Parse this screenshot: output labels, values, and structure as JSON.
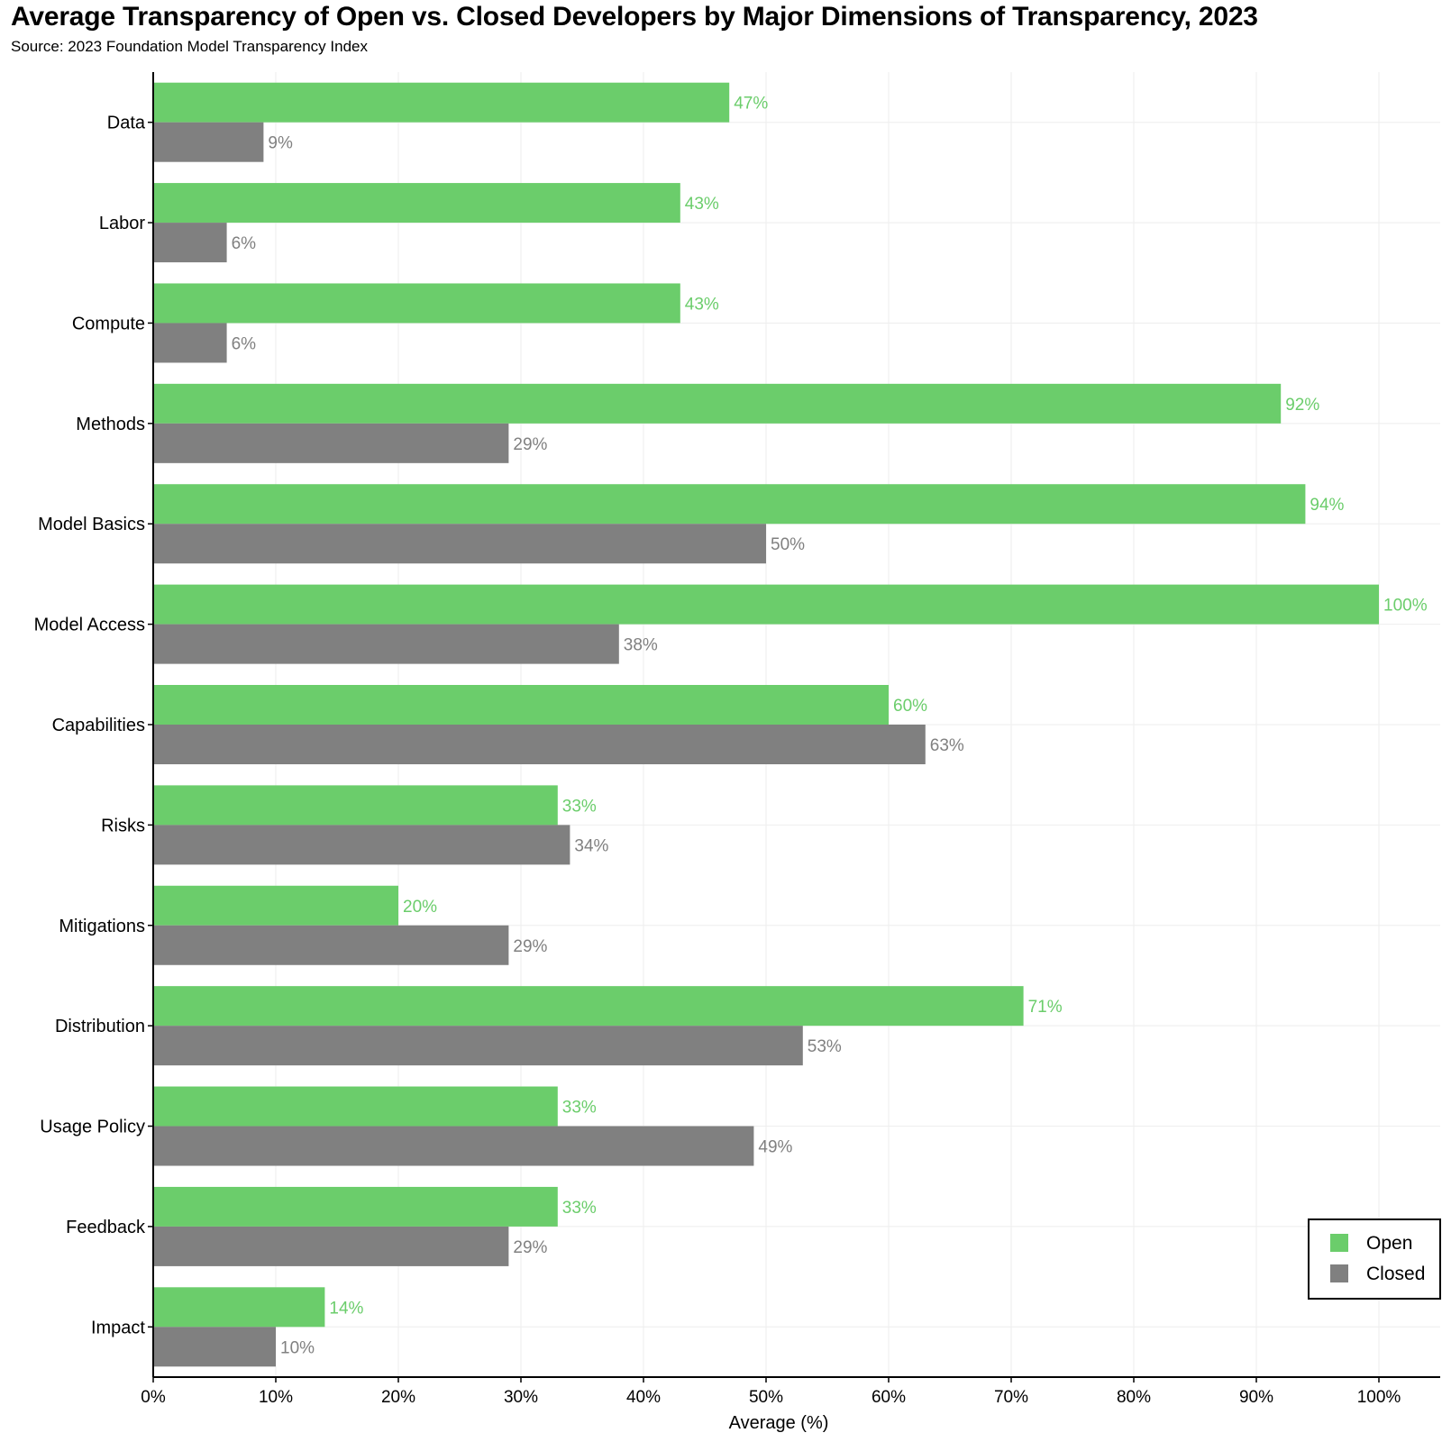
{
  "header": {
    "title": "Average Transparency of Open vs. Closed Developers by Major Dimensions of Transparency, 2023",
    "source": "Source: 2023 Foundation Model Transparency Index"
  },
  "colors": {
    "open": "#6bcd6b",
    "closed": "#808080",
    "grid": "#eeeeee",
    "axis": "#000000"
  },
  "chart_data": {
    "type": "bar",
    "orientation": "horizontal",
    "categories": [
      "Data",
      "Labor",
      "Compute",
      "Methods",
      "Model Basics",
      "Model Access",
      "Capabilities",
      "Risks",
      "Mitigations",
      "Distribution",
      "Usage Policy",
      "Feedback",
      "Impact"
    ],
    "series": [
      {
        "name": "Open",
        "values": [
          47,
          43,
          43,
          92,
          94,
          100,
          60,
          33,
          20,
          71,
          33,
          33,
          14
        ],
        "labels": [
          "47%",
          "43%",
          "43%",
          "92%",
          "94%",
          "100%",
          "60%",
          "33%",
          "20%",
          "71%",
          "33%",
          "33%",
          "14%"
        ]
      },
      {
        "name": "Closed",
        "values": [
          9,
          6,
          6,
          29,
          50,
          38,
          63,
          34,
          29,
          53,
          49,
          29,
          10
        ],
        "labels": [
          "9%",
          "6%",
          "6%",
          "29%",
          "50%",
          "38%",
          "63%",
          "34%",
          "29%",
          "53%",
          "49%",
          "29%",
          "10%"
        ]
      }
    ],
    "xlabel": "Average (%)",
    "xlim": [
      0,
      105
    ],
    "xticks": [
      0,
      10,
      20,
      30,
      40,
      50,
      60,
      70,
      80,
      90,
      100
    ],
    "xtick_labels": [
      "0%",
      "10%",
      "20%",
      "30%",
      "40%",
      "50%",
      "60%",
      "70%",
      "80%",
      "90%",
      "100%"
    ],
    "grid": true,
    "legend": {
      "position": "bottom-right",
      "entries": [
        "Open",
        "Closed"
      ]
    }
  }
}
